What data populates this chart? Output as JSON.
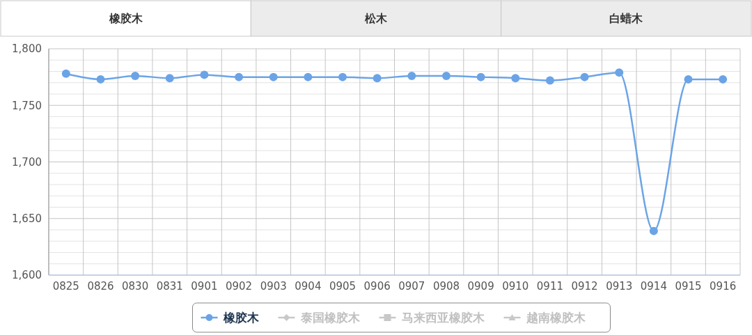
{
  "chart_data": {
    "type": "line",
    "annotations": [
      "橡胶木",
      "松木",
      "白蜡木"
    ],
    "categories": [
      "0825",
      "0826",
      "0830",
      "0831",
      "0901",
      "0902",
      "0903",
      "0904",
      "0905",
      "0906",
      "0907",
      "0908",
      "0909",
      "0910",
      "0911",
      "0912",
      "0913",
      "0914",
      "0915",
      "0916"
    ],
    "series": [
      {
        "name": "橡胶木",
        "color": "#6ba4e6",
        "marker": "circle",
        "values": [
          1778,
          1773,
          1776,
          1774,
          1777,
          1775,
          1775,
          1775,
          1775,
          1774,
          1776,
          1776,
          1775,
          1774,
          1772,
          1775,
          1779,
          1639,
          1773,
          1773
        ]
      },
      {
        "name": "泰国橡胶木",
        "color": "#c8c8c8",
        "marker": "diamond",
        "values": [
          null,
          null,
          null,
          null,
          null,
          null,
          null,
          null,
          null,
          null,
          null,
          null,
          null,
          null,
          null,
          null,
          null,
          null,
          null,
          null
        ]
      },
      {
        "name": "马来西亚橡胶木",
        "color": "#c8c8c8",
        "marker": "square",
        "values": [
          null,
          null,
          null,
          null,
          null,
          null,
          null,
          null,
          null,
          null,
          null,
          null,
          null,
          null,
          null,
          null,
          null,
          null,
          null,
          null
        ]
      },
      {
        "name": "越南橡胶木",
        "color": "#c8c8c8",
        "marker": "triangle",
        "values": [
          null,
          null,
          null,
          null,
          null,
          null,
          null,
          null,
          null,
          null,
          null,
          null,
          null,
          null,
          null,
          null,
          null,
          null,
          null,
          null
        ]
      }
    ],
    "ylim": [
      1600,
      1800
    ],
    "yticks": [
      {
        "value": 1600,
        "label": "1,600"
      },
      {
        "value": 1610,
        "label": null
      },
      {
        "value": 1620,
        "label": null
      },
      {
        "value": 1630,
        "label": null
      },
      {
        "value": 1640,
        "label": null
      },
      {
        "value": 1650,
        "label": "1,650"
      },
      {
        "value": 1660,
        "label": null
      },
      {
        "value": 1670,
        "label": null
      },
      {
        "value": 1680,
        "label": null
      },
      {
        "value": 1690,
        "label": null
      },
      {
        "value": 1700,
        "label": "1,700"
      },
      {
        "value": 1710,
        "label": null
      },
      {
        "value": 1720,
        "label": null
      },
      {
        "value": 1730,
        "label": null
      },
      {
        "value": 1740,
        "label": null
      },
      {
        "value": 1750,
        "label": "1,750"
      },
      {
        "value": 1760,
        "label": null
      },
      {
        "value": 1770,
        "label": null
      },
      {
        "value": 1780,
        "label": null
      },
      {
        "value": 1790,
        "label": null
      },
      {
        "value": 1800,
        "label": "1,800"
      }
    ],
    "grid": true,
    "legend": "bottom"
  }
}
